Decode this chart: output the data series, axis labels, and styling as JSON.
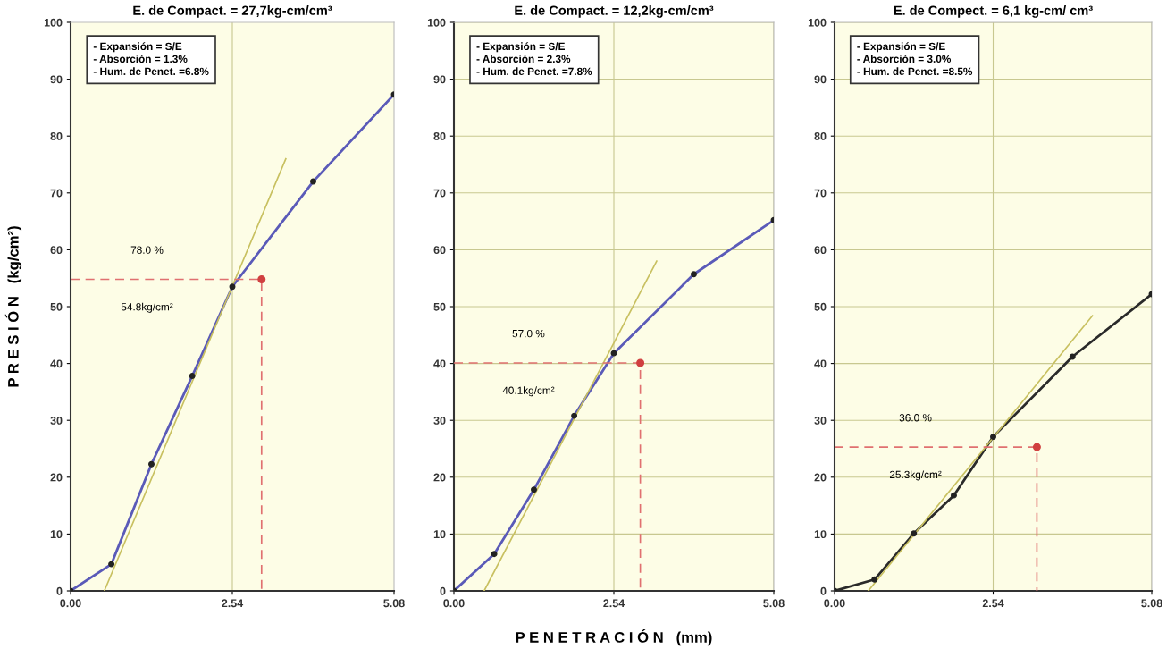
{
  "chart_data": [
    {
      "type": "line",
      "title": "E. de Compact. = 27,7kg-cm/cm³",
      "ylabel": "P R E S I Ó N   (kg/cm²)",
      "xlim": [
        0,
        5.08
      ],
      "ylim": [
        0,
        100
      ],
      "xticks": [
        {
          "value": 0,
          "label": "0.00"
        },
        {
          "value": 2.54,
          "label": "2.54"
        },
        {
          "value": 5.08,
          "label": "5.08"
        }
      ],
      "yticks": [
        0,
        10,
        20,
        30,
        40,
        50,
        60,
        70,
        80,
        90,
        100
      ],
      "marker": "circle",
      "ref_lines": [
        {
          "axis": "x",
          "value": 2.54,
          "color": "#c8c890"
        }
      ],
      "series": [
        {
          "color": "#5a5ab8",
          "x": [
            0,
            0.64,
            1.27,
            1.91,
            2.54,
            3.81,
            5.08
          ],
          "values": [
            0,
            4.7,
            22.3,
            37.8,
            53.5,
            72,
            87.3
          ]
        },
        {
          "type": "line",
          "color": "#c8c060",
          "marker": "none",
          "x": [
            0.53,
            3.38
          ],
          "values": [
            0,
            76
          ]
        },
        {
          "type": "line",
          "color": "#e07070",
          "marker": "none",
          "line_style": "dashed",
          "x": [
            0,
            3.0,
            3.0
          ],
          "values": [
            54.8,
            54.8,
            0
          ]
        },
        {
          "type": "scatter",
          "color": "#d04040",
          "x": [
            3.0
          ],
          "values": [
            54.8
          ]
        }
      ],
      "annotations": [
        "- Expansión = S/E\n- Absorción = 1.3%\n- Hum. de Penet. =6.8%",
        "78.0 %",
        "54.8kg/cm²"
      ]
    },
    {
      "type": "line",
      "title": "E. de Compact. = 12,2kg-cm/cm³",
      "xlabel": "P E N E T R A C I Ó N   (mm)",
      "xlim": [
        0,
        5.08
      ],
      "ylim": [
        0,
        100
      ],
      "xticks": [
        {
          "value": 0,
          "label": "0.00"
        },
        {
          "value": 2.54,
          "label": "2.54"
        },
        {
          "value": 5.08,
          "label": "5.08"
        }
      ],
      "yticks": [
        0,
        10,
        20,
        30,
        40,
        50,
        60,
        70,
        80,
        90,
        100
      ],
      "grid": true,
      "marker": "circle",
      "series": [
        {
          "color": "#5a5ab8",
          "x": [
            0,
            0.64,
            1.27,
            1.91,
            2.54,
            3.81,
            5.08
          ],
          "values": [
            0,
            6.5,
            17.8,
            30.8,
            41.8,
            55.7,
            65.2
          ]
        },
        {
          "type": "line",
          "color": "#c8c060",
          "marker": "none",
          "x": [
            0.48,
            3.22
          ],
          "values": [
            0,
            58
          ]
        },
        {
          "type": "line",
          "color": "#e07070",
          "marker": "none",
          "line_style": "dashed",
          "x": [
            0,
            2.96,
            2.96
          ],
          "values": [
            40.1,
            40.1,
            0
          ]
        },
        {
          "type": "scatter",
          "color": "#d04040",
          "x": [
            2.96
          ],
          "values": [
            40.1
          ]
        }
      ],
      "annotations": [
        "- Expansión = S/E\n- Absorción = 2.3%\n- Hum. de Penet. =7.8%",
        "57.0 %",
        "40.1kg/cm²"
      ]
    },
    {
      "type": "line",
      "title": "E. de Compect. = 6,1 kg-cm/ cm³",
      "xlim": [
        0,
        5.08
      ],
      "ylim": [
        0,
        100
      ],
      "xticks": [
        {
          "value": 0,
          "label": "0.00"
        },
        {
          "value": 2.54,
          "label": "2.54"
        },
        {
          "value": 5.08,
          "label": "5.08"
        }
      ],
      "yticks": [
        0,
        10,
        20,
        30,
        40,
        50,
        60,
        70,
        80,
        90,
        100
      ],
      "grid": true,
      "marker": "circle",
      "series": [
        {
          "color": "#2a2a2a",
          "x": [
            0,
            0.64,
            1.27,
            1.91,
            2.54,
            3.81,
            5.08
          ],
          "values": [
            0,
            2.0,
            10.1,
            16.8,
            27.1,
            41.2,
            52.2
          ]
        },
        {
          "type": "line",
          "color": "#c8c060",
          "marker": "none",
          "x": [
            0.54,
            4.13
          ],
          "values": [
            0,
            48.4
          ]
        },
        {
          "type": "line",
          "color": "#e07070",
          "marker": "none",
          "line_style": "dashed",
          "x": [
            0,
            3.24,
            3.24
          ],
          "values": [
            25.3,
            25.3,
            0
          ]
        },
        {
          "type": "scatter",
          "color": "#d04040",
          "x": [
            3.24
          ],
          "values": [
            25.3
          ]
        }
      ],
      "annotations": [
        "- Expansión = S/E\n- Absorción = 3.0%\n- Hum. de Penet. =8.5%",
        "36.0 %",
        "25.3kg/cm²"
      ]
    }
  ]
}
